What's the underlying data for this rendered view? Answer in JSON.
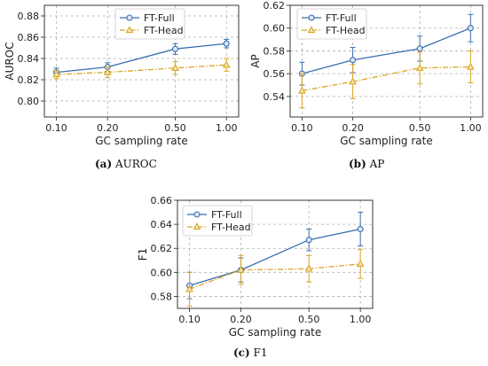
{
  "chart_data": [
    {
      "type": "line",
      "caption_tag": "(a)",
      "caption_text": "AUROC",
      "xlabel": "GC sampling rate",
      "ylabel": "AUROC",
      "x_ticks": [
        "0.10",
        "0.20",
        "0.50",
        "1.00"
      ],
      "x": [
        0.1,
        0.2,
        0.5,
        1.0
      ],
      "x_scale": "log",
      "ylim": [
        0.785,
        0.89
      ],
      "y_ticks": [
        "0.80",
        "0.82",
        "0.84",
        "0.86",
        "0.88"
      ],
      "y_tick_values": [
        0.8,
        0.82,
        0.84,
        0.86,
        0.88
      ],
      "grid": true,
      "legend_position": "top-center",
      "series": [
        {
          "name": "FT-Full",
          "color": "#3a6fb0",
          "marker": "circle",
          "line": "solid",
          "values": [
            0.827,
            0.832,
            0.849,
            0.854
          ],
          "errors": [
            0.004,
            0.004,
            0.005,
            0.004
          ]
        },
        {
          "name": "FT-Head",
          "color": "#d9a521",
          "marker": "triangle",
          "line": "dashdot",
          "values": [
            0.825,
            0.827,
            0.831,
            0.834
          ],
          "errors": [
            0.004,
            0.005,
            0.006,
            0.006
          ]
        }
      ]
    },
    {
      "type": "line",
      "caption_tag": "(b)",
      "caption_text": "AP",
      "xlabel": "GC sampling rate",
      "ylabel": "AP",
      "x_ticks": [
        "0.10",
        "0.20",
        "0.50",
        "1.00"
      ],
      "x": [
        0.1,
        0.2,
        0.5,
        1.0
      ],
      "x_scale": "log",
      "ylim": [
        0.522,
        0.62
      ],
      "y_ticks": [
        "0.54",
        "0.56",
        "0.58",
        "0.60",
        "0.62"
      ],
      "y_tick_values": [
        0.54,
        0.56,
        0.58,
        0.6,
        0.62
      ],
      "grid": true,
      "legend_position": "top-left",
      "series": [
        {
          "name": "FT-Full",
          "color": "#3a6fb0",
          "marker": "circle",
          "line": "solid",
          "values": [
            0.56,
            0.572,
            0.582,
            0.6
          ],
          "errors": [
            0.01,
            0.011,
            0.011,
            0.012
          ]
        },
        {
          "name": "FT-Head",
          "color": "#d9a521",
          "marker": "triangle",
          "line": "dashdot",
          "values": [
            0.545,
            0.553,
            0.565,
            0.566
          ],
          "errors": [
            0.015,
            0.015,
            0.014,
            0.014
          ]
        }
      ]
    },
    {
      "type": "line",
      "caption_tag": "(c)",
      "caption_text": "F1",
      "xlabel": "GC sampling rate",
      "ylabel": "F1",
      "x_ticks": [
        "0.10",
        "0.20",
        "0.50",
        "1.00"
      ],
      "x": [
        0.1,
        0.2,
        0.5,
        1.0
      ],
      "x_scale": "log",
      "ylim": [
        0.57,
        0.66
      ],
      "y_ticks": [
        "0.58",
        "0.60",
        "0.62",
        "0.64",
        "0.66"
      ],
      "y_tick_values": [
        0.58,
        0.6,
        0.62,
        0.64,
        0.66
      ],
      "grid": true,
      "legend_position": "top-left",
      "series": [
        {
          "name": "FT-Full",
          "color": "#3a6fb0",
          "marker": "circle",
          "line": "solid",
          "values": [
            0.589,
            0.602,
            0.627,
            0.636
          ],
          "errors": [
            0.011,
            0.01,
            0.009,
            0.014
          ]
        },
        {
          "name": "FT-Head",
          "color": "#d9a521",
          "marker": "triangle",
          "line": "dashdot",
          "values": [
            0.586,
            0.602,
            0.603,
            0.607
          ],
          "errors": [
            0.014,
            0.012,
            0.011,
            0.012
          ]
        }
      ]
    }
  ]
}
